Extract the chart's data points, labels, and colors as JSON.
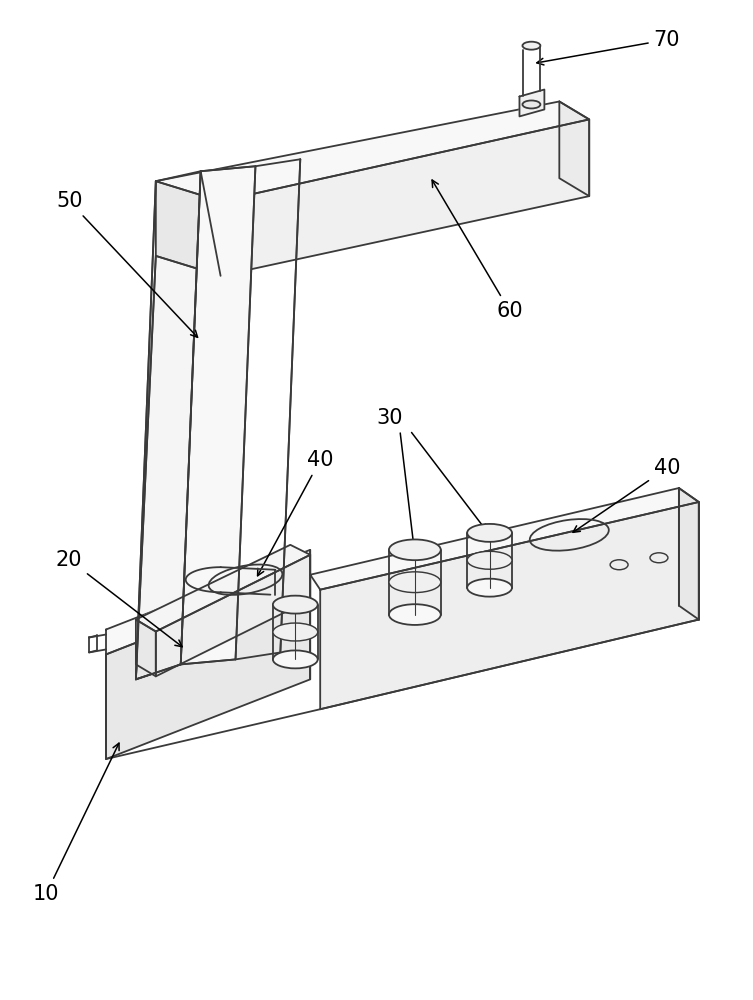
{
  "bg_color": "#ffffff",
  "line_color": "#3a3a3a",
  "line_width": 1.3,
  "label_fontsize": 15,
  "figsize": [
    7.53,
    10.0
  ],
  "dpi": 100
}
